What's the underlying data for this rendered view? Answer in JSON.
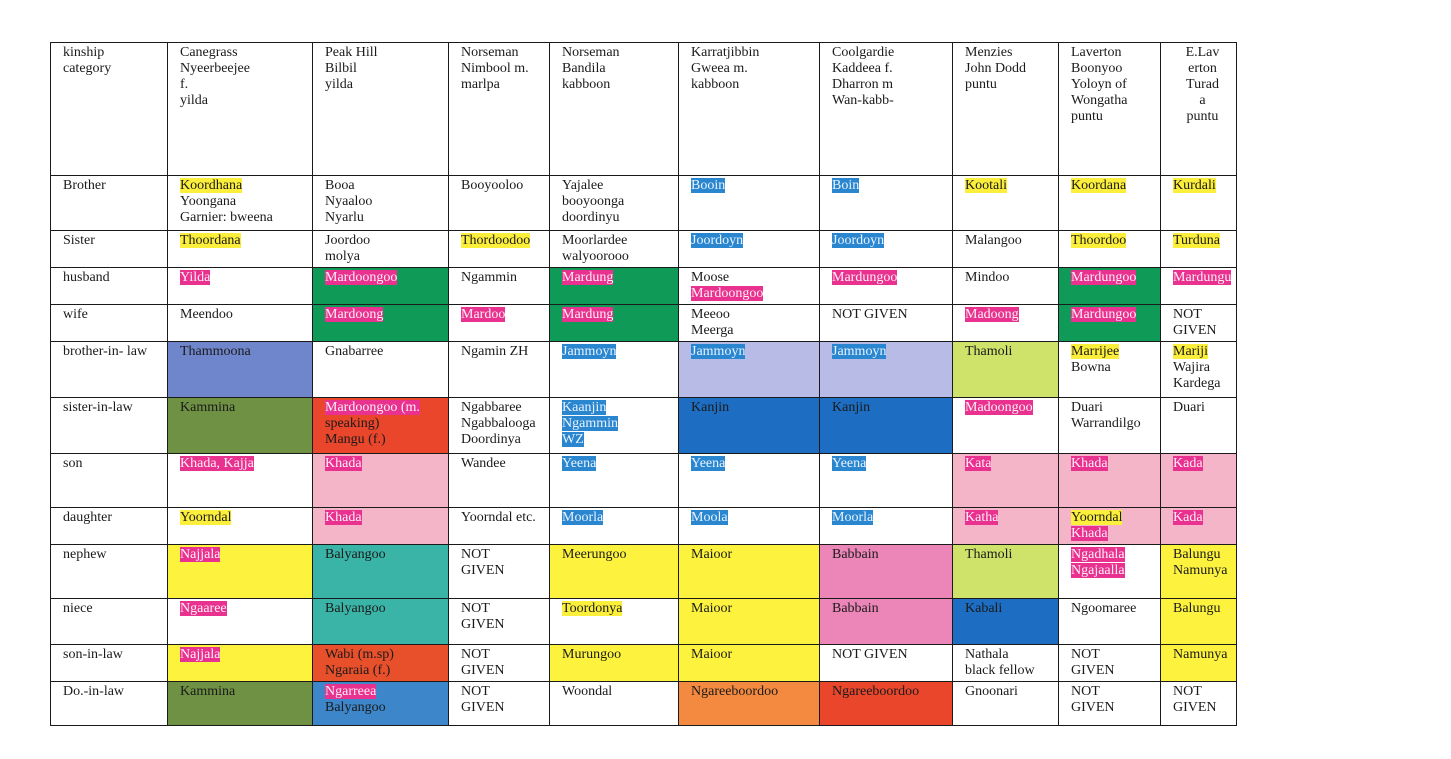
{
  "table": {
    "header": [
      {
        "lines": [
          "kinship",
          "category"
        ]
      },
      {
        "lines": [
          "Canegrass",
          "Nyeerbeejee",
          "f.",
          "yilda"
        ]
      },
      {
        "lines": [
          "Peak Hill",
          "Bilbil",
          "",
          "yilda"
        ]
      },
      {
        "lines": [
          "Norseman",
          "Nimbool m.",
          "",
          "marlpa"
        ]
      },
      {
        "lines": [
          "Norseman",
          "Bandila",
          "",
          "kabboon"
        ]
      },
      {
        "lines": [
          "Karratjibbin",
          "Gweea m.",
          "",
          "kabboon"
        ]
      },
      {
        "lines": [
          "Coolgardie",
          "Kaddeea f.",
          "Dharron m",
          "Wan-kabb-"
        ]
      },
      {
        "lines": [
          "Menzies",
          "John Dodd",
          "",
          "puntu"
        ]
      },
      {
        "lines": [
          "Laverton",
          "Boonyoo",
          "Yoloyn of",
          "Wongatha",
          "puntu"
        ]
      },
      {
        "lines": [
          "E.Lav",
          "erton",
          "Turad",
          "a",
          "",
          "",
          "puntu"
        ]
      }
    ],
    "rows": [
      {
        "category": "Brother",
        "cells": [
          {
            "lines": [
              "Koordhana",
              "Yoongana",
              "Garnier: bweena"
            ],
            "hl": [
              "yellow",
              "",
              ""
            ]
          },
          {
            "lines": [
              "Booa",
              "Nyaaloo",
              "Nyarlu"
            ]
          },
          {
            "lines": [
              "Booyooloo"
            ]
          },
          {
            "lines": [
              "Yajalee",
              "booyoonga",
              "doordinyu"
            ]
          },
          {
            "lines": [
              "Booin"
            ],
            "hl": [
              "blue"
            ]
          },
          {
            "lines": [
              "Boin"
            ],
            "hl": [
              "blue"
            ]
          },
          {
            "lines": [
              "Kootali"
            ],
            "hl": [
              "yellow"
            ]
          },
          {
            "lines": [
              "Koordana"
            ],
            "hl": [
              "yellow"
            ]
          },
          {
            "lines": [
              "Kurdali"
            ],
            "hl": [
              "yellow"
            ]
          }
        ]
      },
      {
        "category": "Sister",
        "cells": [
          {
            "lines": [
              "Thoordana"
            ],
            "hl": [
              "yellow"
            ]
          },
          {
            "lines": [
              "Joordoo",
              "molya"
            ]
          },
          {
            "lines": [
              "Thordoodoo"
            ],
            "hl": [
              "yellow"
            ]
          },
          {
            "lines": [
              "Moorlardee",
              "walyoorooo"
            ]
          },
          {
            "lines": [
              "Joordoyn"
            ],
            "hl": [
              "blue"
            ]
          },
          {
            "lines": [
              "Joordoyn"
            ],
            "hl": [
              "blue"
            ]
          },
          {
            "lines": [
              "Malangoo"
            ]
          },
          {
            "lines": [
              "Thoordoo"
            ],
            "hl": [
              "yellow"
            ]
          },
          {
            "lines": [
              "Turduna"
            ],
            "hl": [
              "yellow"
            ]
          }
        ]
      },
      {
        "category": "husband",
        "cells": [
          {
            "lines": [
              "Yilda"
            ],
            "hl": [
              "pink"
            ]
          },
          {
            "lines": [
              "Mardoongoo"
            ],
            "hl": [
              "pink"
            ],
            "bg": "green"
          },
          {
            "lines": [
              "Ngammin"
            ]
          },
          {
            "lines": [
              "Mardung"
            ],
            "hl": [
              "pink"
            ],
            "bg": "green"
          },
          {
            "lines": [
              "Moose",
              "Mardoongoo"
            ],
            "hl": [
              "",
              "pink"
            ]
          },
          {
            "lines": [
              "Mardungoo"
            ],
            "hl": [
              "pink"
            ]
          },
          {
            "lines": [
              "Mindoo"
            ]
          },
          {
            "lines": [
              "Mardungoo"
            ],
            "hl": [
              "pink"
            ],
            "bg": "green"
          },
          {
            "lines": [
              "Mardungu"
            ],
            "hl": [
              "pink"
            ]
          }
        ]
      },
      {
        "category": "wife",
        "cells": [
          {
            "lines": [
              "Meendoo"
            ]
          },
          {
            "lines": [
              "Mardoong"
            ],
            "hl": [
              "pink"
            ],
            "bg": "green"
          },
          {
            "lines": [
              "Mardoo"
            ],
            "hl": [
              "pink"
            ]
          },
          {
            "lines": [
              "Mardung"
            ],
            "hl": [
              "pink"
            ],
            "bg": "green"
          },
          {
            "lines": [
              "Meeoo",
              "Meerga"
            ]
          },
          {
            "lines": [
              "NOT GIVEN"
            ]
          },
          {
            "lines": [
              "Madoong"
            ],
            "hl": [
              "pink"
            ]
          },
          {
            "lines": [
              "Mardungoo"
            ],
            "hl": [
              "pink"
            ],
            "bg": "green"
          },
          {
            "lines": [
              "NOT",
              "GIVEN"
            ]
          }
        ]
      },
      {
        "category": "brother-in- law",
        "cells": [
          {
            "lines": [
              "Thammoona"
            ],
            "bg": "periwinkle"
          },
          {
            "lines": [
              "Gnabarree"
            ]
          },
          {
            "lines": [
              "Ngamin ZH"
            ]
          },
          {
            "lines": [
              "Jammoyn"
            ],
            "hl": [
              "blue"
            ]
          },
          {
            "lines": [
              "Jammoyn"
            ],
            "hl": [
              "blue"
            ],
            "bg": "lavender"
          },
          {
            "lines": [
              "Jammoyn"
            ],
            "hl": [
              "blue"
            ],
            "bg": "lavender"
          },
          {
            "lines": [
              "Thamoli"
            ],
            "bg": "lime"
          },
          {
            "lines": [
              "Marrijee",
              "Bowna"
            ],
            "hl": [
              "yellow",
              ""
            ]
          },
          {
            "lines": [
              "Mariji",
              "Wajira",
              "Kardega"
            ],
            "hl": [
              "yellow",
              "",
              ""
            ]
          }
        ]
      },
      {
        "category": "sister-in-law",
        "cells": [
          {
            "lines": [
              "Kammina"
            ],
            "bg": "olive"
          },
          {
            "lines": [
              "Mardoongoo (m.",
              "speaking)",
              "Mangu (f.)"
            ],
            "hl": [
              "pink",
              "",
              ""
            ],
            "bg": "red"
          },
          {
            "lines": [
              "Ngabbaree",
              "Ngabbalooga",
              "Doordinya"
            ]
          },
          {
            "lines": [
              "Kaanjin",
              "Ngammin",
              "WZ"
            ],
            "hl": [
              "blue",
              "blue",
              "blue"
            ]
          },
          {
            "lines": [
              "Kanjin"
            ],
            "bg": "royal"
          },
          {
            "lines": [
              "Kanjin"
            ],
            "bg": "royal"
          },
          {
            "lines": [
              "Madoongoo"
            ],
            "hl": [
              "pink"
            ]
          },
          {
            "lines": [
              "Duari",
              "Warrandilgo"
            ]
          },
          {
            "lines": [
              "Duari"
            ]
          }
        ]
      },
      {
        "category": "son",
        "cells": [
          {
            "lines": [
              "Khada, Kajja"
            ],
            "hl": [
              "pink"
            ]
          },
          {
            "lines": [
              "Khada"
            ],
            "hl": [
              "pink"
            ],
            "bg": "lpink"
          },
          {
            "lines": [
              "Wandee"
            ]
          },
          {
            "lines": [
              "Yeena"
            ],
            "hl": [
              "blue"
            ]
          },
          {
            "lines": [
              "Yeena"
            ],
            "hl": [
              "blue"
            ]
          },
          {
            "lines": [
              "Yeena"
            ],
            "hl": [
              "blue"
            ]
          },
          {
            "lines": [
              "Kata"
            ],
            "hl": [
              "pink"
            ],
            "bg": "lpink"
          },
          {
            "lines": [
              "Khada"
            ],
            "hl": [
              "pink"
            ],
            "bg": "lpink"
          },
          {
            "lines": [
              "Kada"
            ],
            "hl": [
              "pink"
            ],
            "bg": "lpink"
          }
        ]
      },
      {
        "category": "daughter",
        "cells": [
          {
            "lines": [
              "Yoorndal"
            ],
            "hl": [
              "yellow"
            ]
          },
          {
            "lines": [
              "Khada"
            ],
            "hl": [
              "pink"
            ],
            "bg": "lpink"
          },
          {
            "lines": [
              "Yoorndal etc."
            ]
          },
          {
            "lines": [
              "Moorla"
            ],
            "hl": [
              "blue"
            ]
          },
          {
            "lines": [
              "Moola"
            ],
            "hl": [
              "blue"
            ]
          },
          {
            "lines": [
              "Moorla"
            ],
            "hl": [
              "blue"
            ]
          },
          {
            "lines": [
              "Katha"
            ],
            "hl": [
              "pink"
            ],
            "bg": "lpink"
          },
          {
            "lines": [
              "Yoorndal",
              "Khada"
            ],
            "hl": [
              "yellow",
              "pink"
            ],
            "bg": "lpink"
          },
          {
            "lines": [
              "Kada"
            ],
            "hl": [
              "pink"
            ],
            "bg": "lpink"
          }
        ]
      },
      {
        "category": "nephew",
        "cells": [
          {
            "lines": [
              "Najjala"
            ],
            "hl": [
              "pink"
            ],
            "bg": "yellow"
          },
          {
            "lines": [
              "Balyangoo"
            ],
            "bg": "teal"
          },
          {
            "lines": [
              "NOT",
              "GIVEN"
            ]
          },
          {
            "lines": [
              "Meerungoo"
            ],
            "bg": "yellow"
          },
          {
            "lines": [
              "Maioor"
            ],
            "bg": "yellow"
          },
          {
            "lines": [
              "Babbain"
            ],
            "bg": "hotpink"
          },
          {
            "lines": [
              "Thamoli"
            ],
            "bg": "lime"
          },
          {
            "lines": [
              "Ngadhala",
              "Ngajaalla"
            ],
            "hl": [
              "pink",
              "pink"
            ]
          },
          {
            "lines": [
              "Balungu",
              "Namunya"
            ],
            "bg": "yellow"
          }
        ]
      },
      {
        "category": "niece",
        "cells": [
          {
            "lines": [
              "Ngaaree"
            ],
            "hl": [
              "pink"
            ]
          },
          {
            "lines": [
              "Balyangoo"
            ],
            "bg": "teal"
          },
          {
            "lines": [
              "NOT",
              "GIVEN"
            ]
          },
          {
            "lines": [
              "Toordonya"
            ],
            "hl": [
              "yellow"
            ]
          },
          {
            "lines": [
              "Maioor"
            ],
            "bg": "yellow"
          },
          {
            "lines": [
              "Babbain"
            ],
            "bg": "hotpink"
          },
          {
            "lines": [
              "Kabali"
            ],
            "bg": "royal"
          },
          {
            "lines": [
              "Ngoomaree"
            ]
          },
          {
            "lines": [
              "Balungu"
            ],
            "bg": "yellow"
          }
        ]
      },
      {
        "category": "son-in-law",
        "cells": [
          {
            "lines": [
              "Najjala"
            ],
            "hl": [
              "pink"
            ],
            "bg": "yellow"
          },
          {
            "lines": [
              "Wabi (m.sp)",
              "Ngaraia (f.)"
            ],
            "hl": [
              "",
              ""
            ],
            "bg": "redorange"
          },
          {
            "lines": [
              "NOT",
              "GIVEN"
            ]
          },
          {
            "lines": [
              "Murungoo"
            ],
            "bg": "yellow"
          },
          {
            "lines": [
              "Maioor"
            ],
            "bg": "yellow"
          },
          {
            "lines": [
              "NOT GIVEN"
            ]
          },
          {
            "lines": [
              "Nathala",
              "black fellow"
            ]
          },
          {
            "lines": [
              "NOT",
              "GIVEN"
            ]
          },
          {
            "lines": [
              "Namunya"
            ],
            "bg": "yellow"
          }
        ]
      },
      {
        "category": "Do.-in-law",
        "cells": [
          {
            "lines": [
              "Kammina"
            ],
            "bg": "olive"
          },
          {
            "lines": [
              "Ngarreea",
              "Balyangoo"
            ],
            "hl": [
              "pink",
              ""
            ],
            "bg": "steel"
          },
          {
            "lines": [
              "NOT",
              "GIVEN"
            ]
          },
          {
            "lines": [
              "Woondal"
            ]
          },
          {
            "lines": [
              "Ngareeboordoo"
            ],
            "bg": "orange"
          },
          {
            "lines": [
              "Ngareeboordoo"
            ],
            "bg": "red"
          },
          {
            "lines": [
              "Gnoonari"
            ]
          },
          {
            "lines": [
              "NOT",
              "GIVEN"
            ]
          },
          {
            "lines": [
              "NOT",
              "GIVEN"
            ]
          }
        ]
      }
    ]
  }
}
